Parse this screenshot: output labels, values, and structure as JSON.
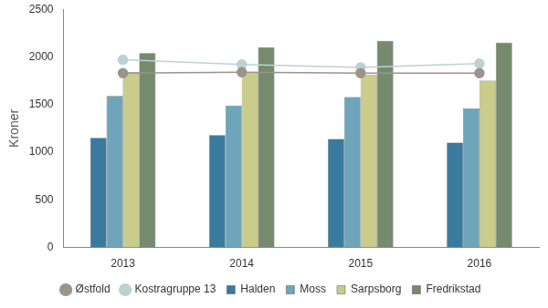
{
  "chart_data": {
    "type": "bar",
    "y_label": "Kroner",
    "categories": [
      "2013",
      "2014",
      "2015",
      "2016"
    ],
    "series": [
      {
        "name": "Halden",
        "type": "bar",
        "color": "#3a7a9c",
        "values": [
          1150,
          1180,
          1140,
          1100
        ]
      },
      {
        "name": "Moss",
        "type": "bar",
        "color": "#6ea5bb",
        "values": [
          1590,
          1490,
          1580,
          1460
        ]
      },
      {
        "name": "Sarpsborg",
        "type": "bar",
        "color": "#c9cc8a",
        "values": [
          1840,
          1840,
          1810,
          1750
        ]
      },
      {
        "name": "Fredrikstad",
        "type": "bar",
        "color": "#768a6e",
        "values": [
          2040,
          2100,
          2170,
          2150
        ]
      },
      {
        "name": "Østfold",
        "type": "line",
        "marker": "circle",
        "color": "#9a948a",
        "values": [
          1830,
          1840,
          1830,
          1830
        ]
      },
      {
        "name": "Kostragruppe 13",
        "type": "line",
        "marker": "circle",
        "color": "#bcd2d2",
        "values": [
          1970,
          1920,
          1890,
          1930
        ]
      }
    ],
    "ylim": [
      0,
      2500
    ],
    "yticks": [
      0,
      500,
      1000,
      1500,
      2000,
      2500
    ],
    "grid": false,
    "legend": "bottom"
  }
}
